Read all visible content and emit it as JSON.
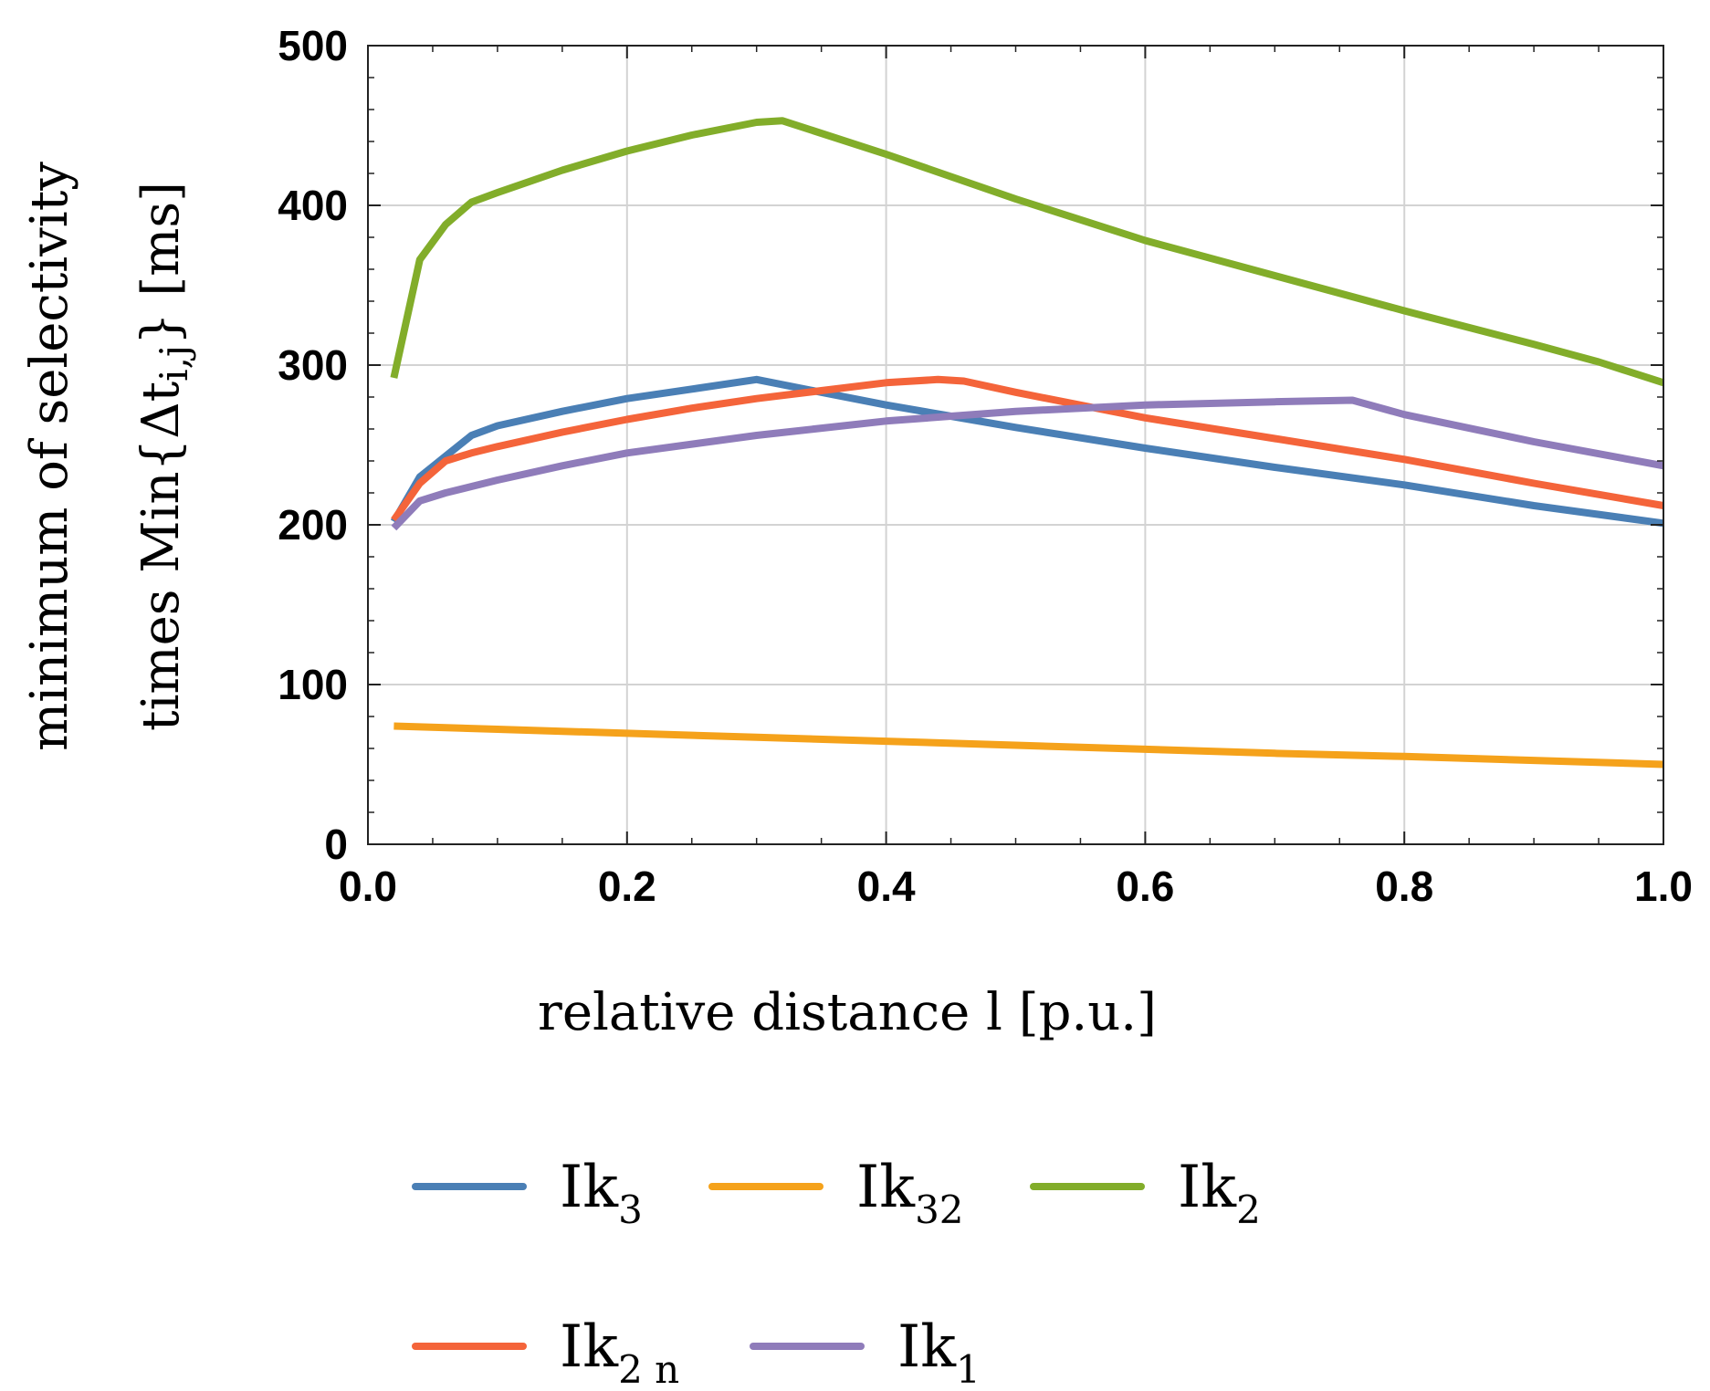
{
  "chart_data": {
    "type": "line",
    "xlabel": "relative distance l [p.u.]",
    "ylabel_line1": "minimum of selectivity",
    "ylabel_line2_main": "times Min{Δt",
    "ylabel_line2_sub": "i,j",
    "ylabel_line2_end": "} [ms]",
    "xlim": [
      0,
      1
    ],
    "ylim": [
      0,
      500
    ],
    "x_ticks": [
      {
        "value": 0.0,
        "label": "0.0"
      },
      {
        "value": 0.2,
        "label": "0.2"
      },
      {
        "value": 0.4,
        "label": "0.4"
      },
      {
        "value": 0.6,
        "label": "0.6"
      },
      {
        "value": 0.8,
        "label": "0.8"
      },
      {
        "value": 1.0,
        "label": "1.0"
      }
    ],
    "y_ticks": [
      {
        "value": 0,
        "label": "0"
      },
      {
        "value": 100,
        "label": "100"
      },
      {
        "value": 200,
        "label": "200"
      },
      {
        "value": 300,
        "label": "300"
      },
      {
        "value": 400,
        "label": "400"
      },
      {
        "value": 500,
        "label": "500"
      }
    ],
    "grid": true,
    "legend_position": "bottom",
    "series": [
      {
        "name": "Ik3",
        "label_main": "Ik",
        "label_sub": "3",
        "color": "#4a7fb5",
        "x": [
          0.02,
          0.04,
          0.06,
          0.08,
          0.1,
          0.15,
          0.2,
          0.25,
          0.3,
          0.35,
          0.4,
          0.45,
          0.5,
          0.6,
          0.7,
          0.8,
          0.9,
          1.0
        ],
        "y": [
          202,
          230,
          243,
          256,
          262,
          271,
          279,
          285,
          291,
          283,
          275,
          268,
          261,
          248,
          236,
          225,
          212,
          201
        ]
      },
      {
        "name": "Ik32",
        "label_main": "Ik",
        "label_sub": "32",
        "color": "#f5a21b",
        "x": [
          0.02,
          0.1,
          0.2,
          0.3,
          0.4,
          0.5,
          0.6,
          0.7,
          0.8,
          0.9,
          1.0
        ],
        "y": [
          74,
          72,
          69.5,
          67,
          64.5,
          62,
          59.5,
          57,
          55,
          52.5,
          50
        ]
      },
      {
        "name": "Ik2",
        "label_main": "Ik",
        "label_sub": "2",
        "color": "#82ad2a",
        "x": [
          0.02,
          0.04,
          0.06,
          0.08,
          0.1,
          0.15,
          0.2,
          0.25,
          0.3,
          0.32,
          0.4,
          0.5,
          0.6,
          0.7,
          0.8,
          0.9,
          0.95,
          1.0
        ],
        "y": [
          292,
          366,
          388,
          402,
          408,
          422,
          434,
          444,
          452,
          453,
          432,
          404,
          378,
          356,
          334,
          313,
          302,
          289
        ]
      },
      {
        "name": "Ik2n",
        "label_main": "Ik",
        "label_sub": "2 n",
        "color": "#f4643a",
        "x": [
          0.02,
          0.04,
          0.06,
          0.08,
          0.1,
          0.15,
          0.2,
          0.25,
          0.3,
          0.35,
          0.4,
          0.44,
          0.46,
          0.5,
          0.6,
          0.7,
          0.8,
          0.9,
          1.0
        ],
        "y": [
          203,
          226,
          240,
          245,
          249,
          258,
          266,
          273,
          279,
          284,
          289,
          291,
          290,
          283,
          267,
          254,
          241,
          226,
          212
        ]
      },
      {
        "name": "Ik1",
        "label_main": "Ik",
        "label_sub": "1",
        "color": "#8f7cba",
        "x": [
          0.02,
          0.04,
          0.06,
          0.08,
          0.1,
          0.15,
          0.2,
          0.3,
          0.4,
          0.5,
          0.6,
          0.7,
          0.76,
          0.8,
          0.9,
          1.0
        ],
        "y": [
          198,
          215,
          220,
          224,
          228,
          237,
          245,
          256,
          265,
          271,
          275,
          277,
          278,
          269,
          252,
          237
        ]
      }
    ]
  }
}
